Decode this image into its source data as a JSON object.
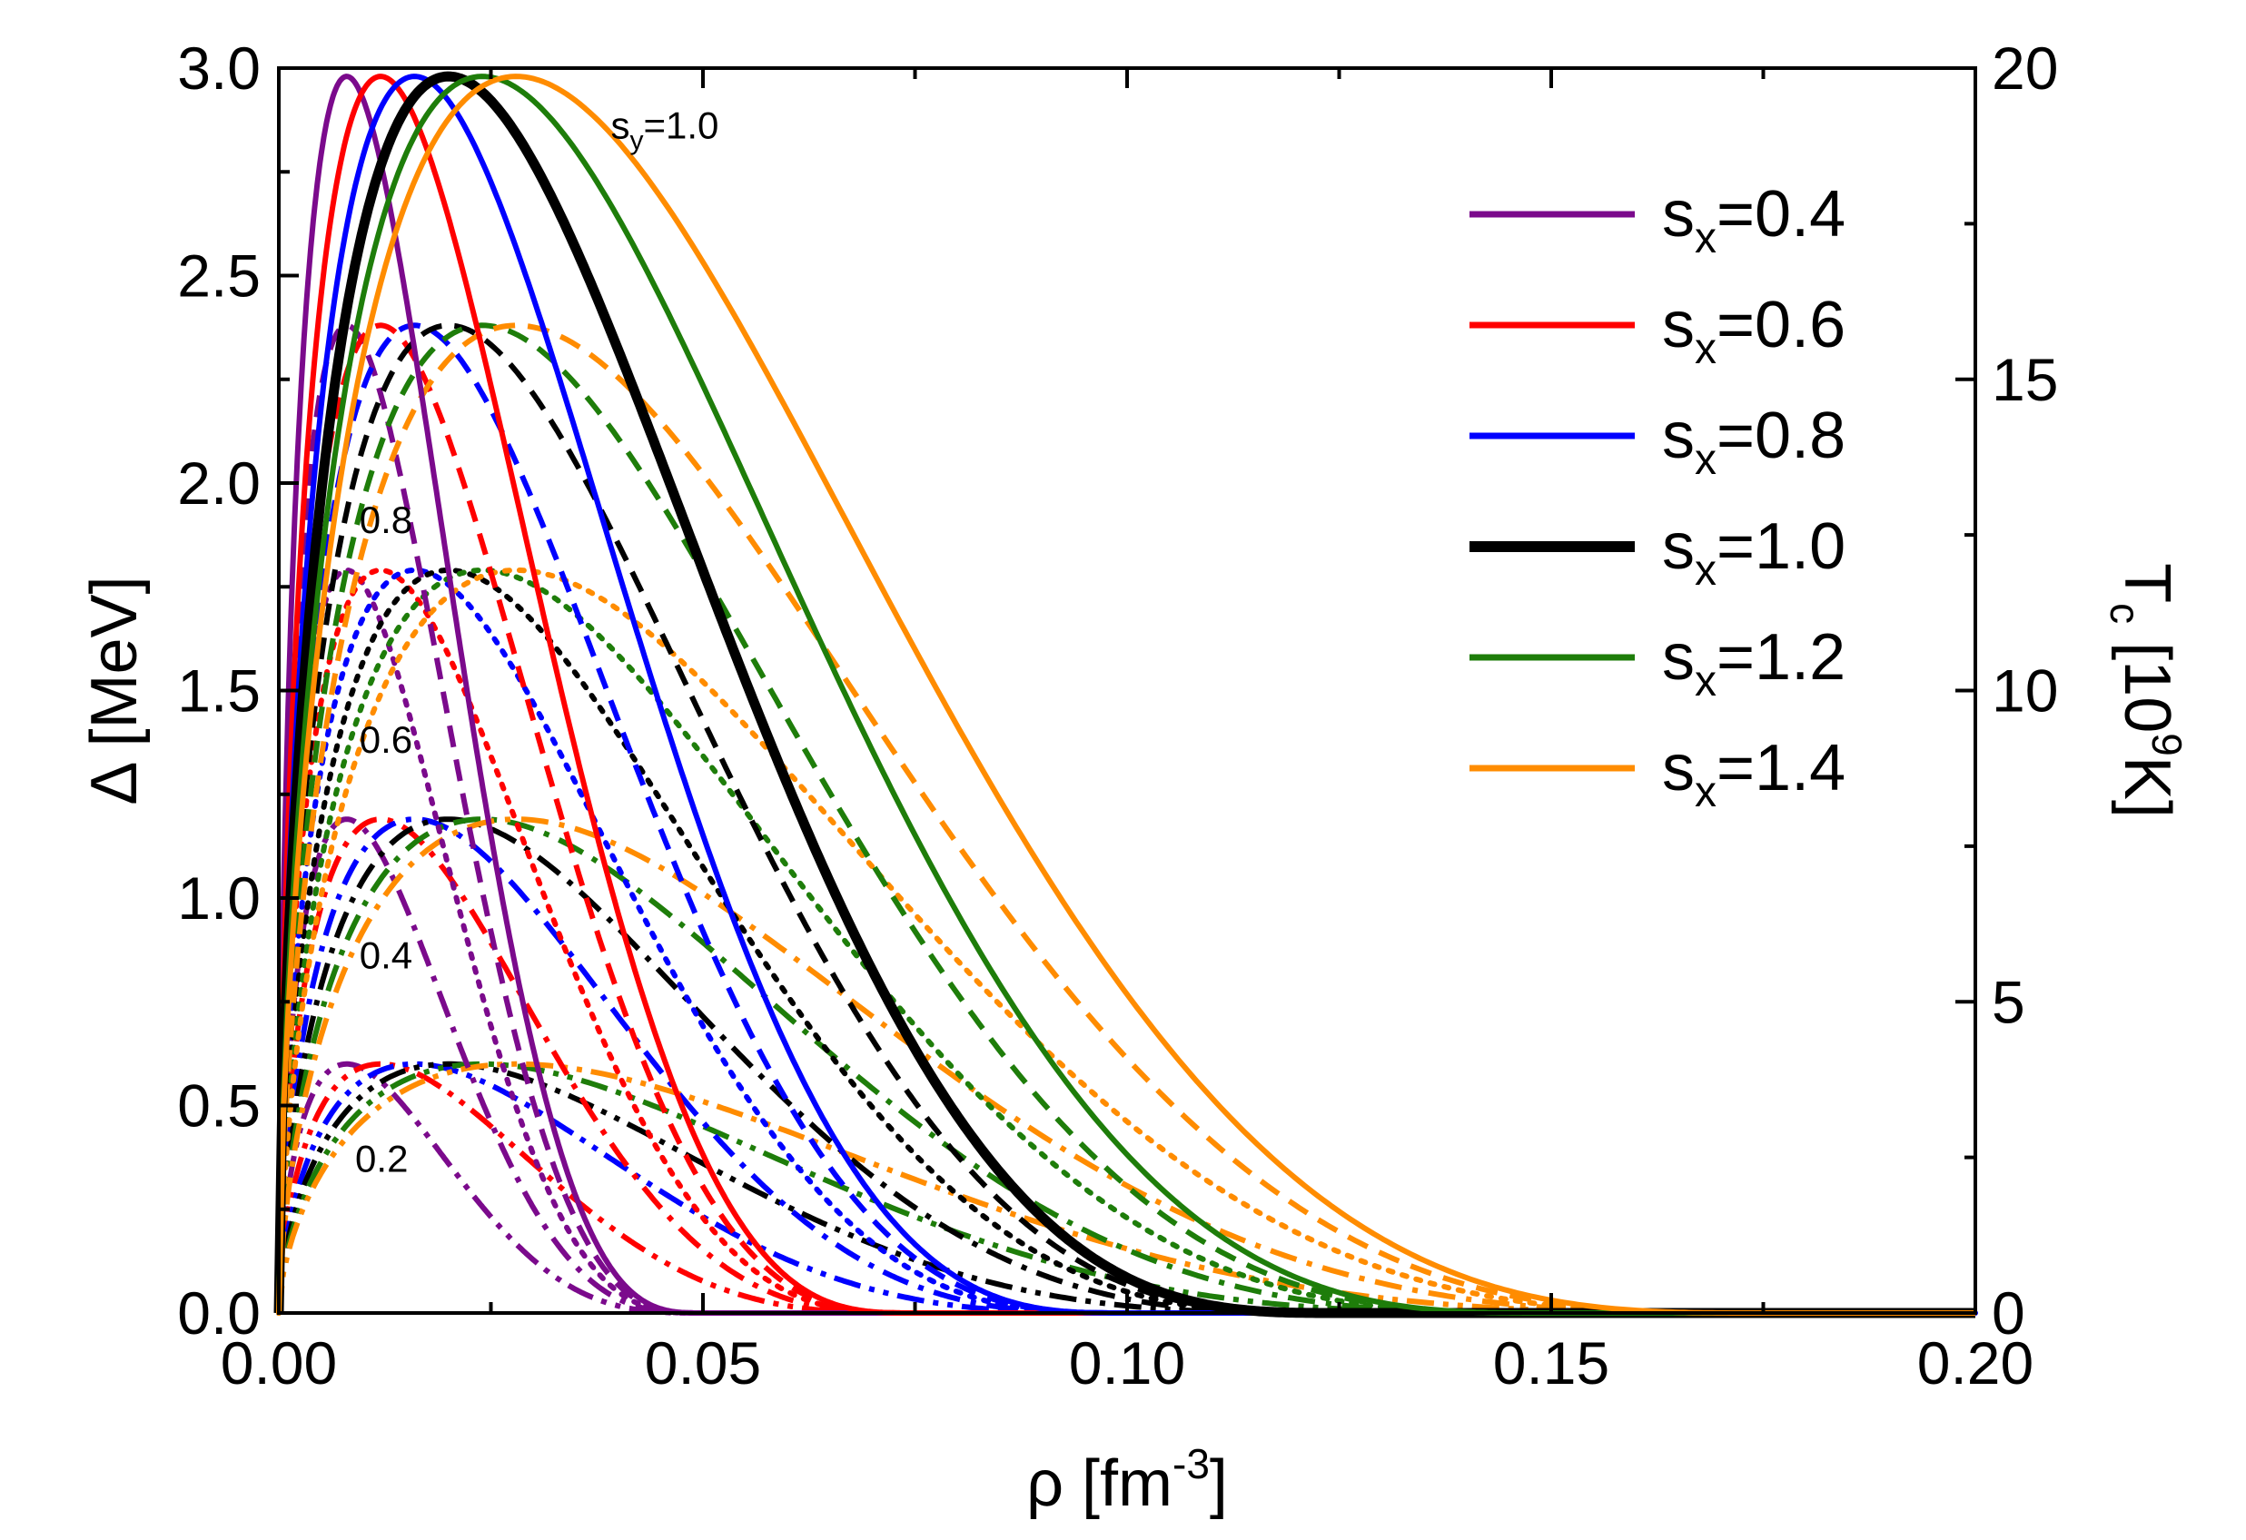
{
  "chart_data": {
    "type": "line",
    "x": {
      "label": "ρ [fm",
      "label_sup": "-3",
      "label_end": "]",
      "range": [
        0.0,
        0.2
      ],
      "ticks": [
        0.0,
        0.05,
        0.1,
        0.15,
        0.2
      ],
      "tick_labels": [
        "0.00",
        "0.05",
        "0.10",
        "0.15",
        "0.20"
      ]
    },
    "y_left": {
      "label": "Δ [MeV]",
      "range": [
        0.0,
        3.0
      ],
      "ticks": [
        0.0,
        0.5,
        1.0,
        1.5,
        2.0,
        2.5,
        3.0
      ],
      "tick_labels": [
        "0.0",
        "0.5",
        "1.0",
        "1.5",
        "2.0",
        "2.5",
        "3.0"
      ]
    },
    "y_right": {
      "label": "T",
      "label_sub": "c",
      "label_mid": " [10",
      "label_sup": "9",
      "label_end": "K]",
      "range": [
        0,
        20
      ],
      "ticks": [
        0,
        5,
        10,
        15,
        20
      ],
      "tick_labels": [
        "0",
        "5",
        "10",
        "15",
        "20"
      ]
    },
    "legend": {
      "placement": "top-right",
      "entries": [
        {
          "prefix": "s",
          "sub": "x",
          "suffix": "=0.4",
          "color": "#7b0a8c",
          "width": 7
        },
        {
          "prefix": "s",
          "sub": "x",
          "suffix": "=0.6",
          "color": "#ff0000",
          "width": 7
        },
        {
          "prefix": "s",
          "sub": "x",
          "suffix": "=0.8",
          "color": "#0000ff",
          "width": 7
        },
        {
          "prefix": "s",
          "sub": "x",
          "suffix": "=1.0",
          "color": "#000000",
          "width": 12
        },
        {
          "prefix": "s",
          "sub": "x",
          "suffix": "=1.2",
          "color": "#1e7d0a",
          "width": 7
        },
        {
          "prefix": "s",
          "sub": "x",
          "suffix": "=1.4",
          "color": "#ff8c00",
          "width": 7
        }
      ]
    },
    "annotations": {
      "sy_label": {
        "prefix": "s",
        "sub": "y",
        "suffix": "=1.0",
        "x": 0.0455,
        "y": 2.83
      },
      "peak_labels": [
        {
          "text": "0.8",
          "x": 0.0095,
          "y": 1.88
        },
        {
          "text": "0.6",
          "x": 0.0095,
          "y": 1.35
        },
        {
          "text": "0.4",
          "x": 0.0095,
          "y": 0.83
        },
        {
          "text": "0.2",
          "x": 0.009,
          "y": 0.34
        }
      ]
    },
    "sx_values": [
      0.4,
      0.6,
      0.8,
      1.0,
      1.2,
      1.4
    ],
    "sy_families": [
      {
        "sy": 1.0,
        "peak_delta": 2.98,
        "style": "solid"
      },
      {
        "sy": 0.8,
        "peak_delta": 2.38,
        "style": "dash"
      },
      {
        "sy": 0.6,
        "peak_delta": 1.79,
        "style": "dot"
      },
      {
        "sy": 0.4,
        "peak_delta": 1.19,
        "style": "dashdot"
      },
      {
        "sy": 0.2,
        "peak_delta": 0.6,
        "style": "dashdotdot"
      }
    ],
    "series": [
      {
        "sx": 0.4,
        "color": "#7b0a8c",
        "peak_rho": 0.008,
        "end_rho": 0.05
      },
      {
        "sx": 0.6,
        "color": "#ff0000",
        "peak_rho": 0.012,
        "end_rho": 0.075
      },
      {
        "sx": 0.8,
        "color": "#0000ff",
        "peak_rho": 0.016,
        "end_rho": 0.1
      },
      {
        "sx": 1.0,
        "color": "#000000",
        "peak_rho": 0.02,
        "end_rho": 0.125
      },
      {
        "sx": 1.2,
        "color": "#1e7d0a",
        "peak_rho": 0.024,
        "end_rho": 0.15
      },
      {
        "sx": 1.4,
        "color": "#ff8c00",
        "peak_rho": 0.028,
        "end_rho": 0.175
      }
    ]
  }
}
